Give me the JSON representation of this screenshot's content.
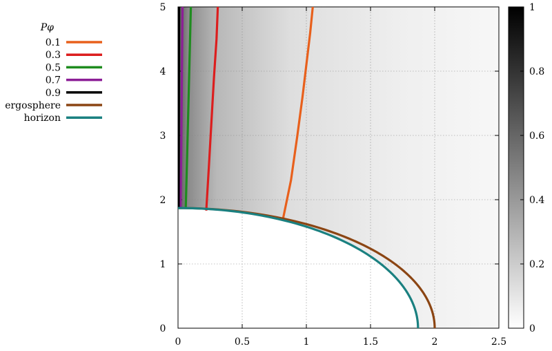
{
  "chart_data": {
    "type": "line",
    "legend_title": "Pφ",
    "legend_position": "left",
    "xlim": [
      0,
      2.5
    ],
    "ylim": [
      0,
      5
    ],
    "x_ticks": [
      "0",
      "0.5",
      "1",
      "1.5",
      "2",
      "2.5"
    ],
    "y_ticks": [
      "0",
      "1",
      "2",
      "3",
      "4",
      "5"
    ],
    "grid": true,
    "colorbar": {
      "range": [
        0,
        1
      ],
      "ticks": [
        "0",
        "0.2",
        "0.4",
        "0.6",
        "0.8",
        "1"
      ],
      "colormap": "white-to-black"
    },
    "series": [
      {
        "name": "0.1",
        "color": "#e8601c",
        "x": [
          0.82,
          0.88,
          0.93,
          0.97,
          1.0,
          1.03,
          1.05
        ],
        "y": [
          1.72,
          2.3,
          3.0,
          3.6,
          4.1,
          4.6,
          5.0
        ]
      },
      {
        "name": "0.3",
        "color": "#dc1e1e",
        "x": [
          0.22,
          0.24,
          0.26,
          0.28,
          0.3,
          0.31
        ],
        "y": [
          1.83,
          2.5,
          3.2,
          3.9,
          4.5,
          5.0
        ]
      },
      {
        "name": "0.5",
        "color": "#1e8c1e",
        "x": [
          0.06,
          0.07,
          0.08,
          0.09,
          0.1
        ],
        "y": [
          1.86,
          2.6,
          3.4,
          4.2,
          5.0
        ]
      },
      {
        "name": "0.7",
        "color": "#8c1e96",
        "x": [
          0.02,
          0.025,
          0.03,
          0.035
        ],
        "y": [
          1.87,
          2.8,
          3.9,
          5.0
        ]
      },
      {
        "name": "0.9",
        "color": "#000000",
        "x": [
          0.005,
          0.006,
          0.007,
          0.008
        ],
        "y": [
          1.87,
          2.8,
          3.9,
          5.0
        ]
      },
      {
        "name": "ergosphere",
        "color": "#8b4513",
        "shape": "quarter-ellipse",
        "a": 2.0,
        "b": 1.87
      },
      {
        "name": "horizon",
        "color": "#1a8080",
        "shape": "quarter-ellipse",
        "a": 1.87,
        "b": 1.87
      }
    ]
  }
}
